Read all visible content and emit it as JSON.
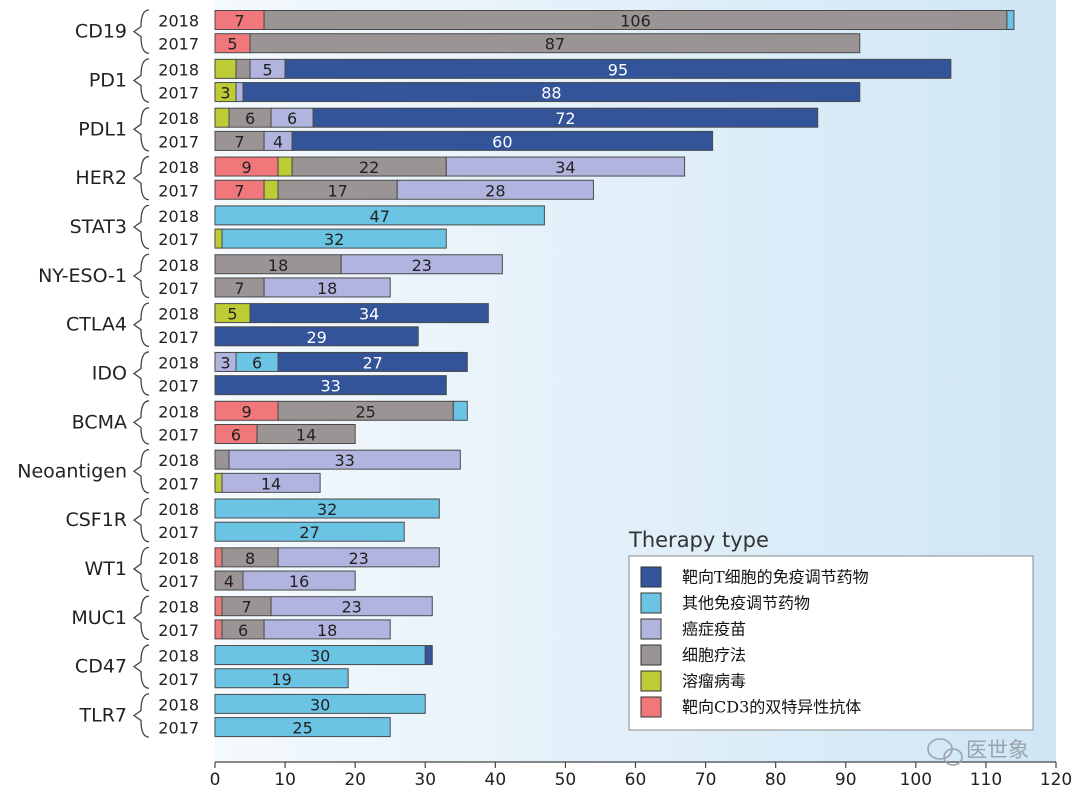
{
  "chart_data": {
    "type": "bar",
    "orientation": "horizontal",
    "stacked": true,
    "xlim": [
      0,
      120
    ],
    "xticks": [
      0,
      10,
      20,
      30,
      40,
      50,
      60,
      70,
      80,
      90,
      100,
      110,
      120
    ],
    "legend": {
      "title": "Therapy type",
      "placement": "bottom-right",
      "items": [
        {
          "key": "t_cell_immunomodulator",
          "label": "靶向T细胞的免疫调节药物",
          "color": "#34549a"
        },
        {
          "key": "other_immunomodulator",
          "label": "其他免疫调节药物",
          "color": "#6cc4e4"
        },
        {
          "key": "cancer_vaccine",
          "label": "癌症疫苗",
          "color": "#b2b4e0"
        },
        {
          "key": "cell_therapy",
          "label": "细胞疗法",
          "color": "#9a9494"
        },
        {
          "key": "oncolytic_virus",
          "label": "溶瘤病毒",
          "color": "#bdcb34"
        },
        {
          "key": "cd3_bispecific",
          "label": "靶向CD3的双特异性抗体",
          "color": "#f0787a"
        }
      ]
    },
    "series_order": [
      "cd3_bispecific",
      "oncolytic_virus",
      "cell_therapy",
      "cancer_vaccine",
      "other_immunomodulator",
      "t_cell_immunomodulator"
    ],
    "targets": [
      {
        "name": "CD19",
        "bars": [
          {
            "year": "2018",
            "segments": [
              {
                "type": "cd3_bispecific",
                "value": 7,
                "label": "7"
              },
              {
                "type": "cell_therapy",
                "value": 106,
                "label": "106"
              },
              {
                "type": "other_immunomodulator",
                "value": 1
              }
            ]
          },
          {
            "year": "2017",
            "segments": [
              {
                "type": "cd3_bispecific",
                "value": 5,
                "label": "5"
              },
              {
                "type": "cell_therapy",
                "value": 87,
                "label": "87"
              }
            ]
          }
        ]
      },
      {
        "name": "PD1",
        "bars": [
          {
            "year": "2018",
            "segments": [
              {
                "type": "oncolytic_virus",
                "value": 3
              },
              {
                "type": "cell_therapy",
                "value": 2
              },
              {
                "type": "cancer_vaccine",
                "value": 5,
                "label": "5"
              },
              {
                "type": "t_cell_immunomodulator",
                "value": 95,
                "label": "95"
              }
            ]
          },
          {
            "year": "2017",
            "segments": [
              {
                "type": "oncolytic_virus",
                "value": 3,
                "label": "3"
              },
              {
                "type": "cancer_vaccine",
                "value": 1
              },
              {
                "type": "t_cell_immunomodulator",
                "value": 88,
                "label": "88"
              }
            ]
          }
        ]
      },
      {
        "name": "PDL1",
        "bars": [
          {
            "year": "2018",
            "segments": [
              {
                "type": "oncolytic_virus",
                "value": 2
              },
              {
                "type": "cell_therapy",
                "value": 6,
                "label": "6"
              },
              {
                "type": "cancer_vaccine",
                "value": 6,
                "label": "6"
              },
              {
                "type": "t_cell_immunomodulator",
                "value": 72,
                "label": "72"
              }
            ]
          },
          {
            "year": "2017",
            "segments": [
              {
                "type": "cell_therapy",
                "value": 7,
                "label": "7"
              },
              {
                "type": "cancer_vaccine",
                "value": 4,
                "label": "4"
              },
              {
                "type": "t_cell_immunomodulator",
                "value": 60,
                "label": "60"
              }
            ]
          }
        ]
      },
      {
        "name": "HER2",
        "bars": [
          {
            "year": "2018",
            "segments": [
              {
                "type": "cd3_bispecific",
                "value": 9,
                "label": "9"
              },
              {
                "type": "oncolytic_virus",
                "value": 2
              },
              {
                "type": "cell_therapy",
                "value": 22,
                "label": "22"
              },
              {
                "type": "cancer_vaccine",
                "value": 34,
                "label": "34"
              }
            ]
          },
          {
            "year": "2017",
            "segments": [
              {
                "type": "cd3_bispecific",
                "value": 7,
                "label": "7"
              },
              {
                "type": "oncolytic_virus",
                "value": 2
              },
              {
                "type": "cell_therapy",
                "value": 17,
                "label": "17"
              },
              {
                "type": "cancer_vaccine",
                "value": 28,
                "label": "28"
              }
            ]
          }
        ]
      },
      {
        "name": "STAT3",
        "bars": [
          {
            "year": "2018",
            "segments": [
              {
                "type": "other_immunomodulator",
                "value": 47,
                "label": "47"
              }
            ]
          },
          {
            "year": "2017",
            "segments": [
              {
                "type": "oncolytic_virus",
                "value": 1
              },
              {
                "type": "other_immunomodulator",
                "value": 32,
                "label": "32"
              }
            ]
          }
        ]
      },
      {
        "name": "NY-ESO-1",
        "bars": [
          {
            "year": "2018",
            "segments": [
              {
                "type": "cell_therapy",
                "value": 18,
                "label": "18"
              },
              {
                "type": "cancer_vaccine",
                "value": 23,
                "label": "23"
              }
            ]
          },
          {
            "year": "2017",
            "segments": [
              {
                "type": "cell_therapy",
                "value": 7,
                "label": "7"
              },
              {
                "type": "cancer_vaccine",
                "value": 18,
                "label": "18"
              }
            ]
          }
        ]
      },
      {
        "name": "CTLA4",
        "bars": [
          {
            "year": "2018",
            "segments": [
              {
                "type": "oncolytic_virus",
                "value": 5,
                "label": "5"
              },
              {
                "type": "t_cell_immunomodulator",
                "value": 34,
                "label": "34"
              }
            ]
          },
          {
            "year": "2017",
            "segments": [
              {
                "type": "t_cell_immunomodulator",
                "value": 29,
                "label": "29"
              }
            ]
          }
        ]
      },
      {
        "name": "IDO",
        "bars": [
          {
            "year": "2018",
            "segments": [
              {
                "type": "cancer_vaccine",
                "value": 3,
                "label": "3"
              },
              {
                "type": "other_immunomodulator",
                "value": 6,
                "label": "6"
              },
              {
                "type": "t_cell_immunomodulator",
                "value": 27,
                "label": "27"
              }
            ]
          },
          {
            "year": "2017",
            "segments": [
              {
                "type": "t_cell_immunomodulator",
                "value": 33,
                "label": "33"
              }
            ]
          }
        ]
      },
      {
        "name": "BCMA",
        "bars": [
          {
            "year": "2018",
            "segments": [
              {
                "type": "cd3_bispecific",
                "value": 9,
                "label": "9"
              },
              {
                "type": "cell_therapy",
                "value": 25,
                "label": "25"
              },
              {
                "type": "other_immunomodulator",
                "value": 2
              }
            ]
          },
          {
            "year": "2017",
            "segments": [
              {
                "type": "cd3_bispecific",
                "value": 6,
                "label": "6"
              },
              {
                "type": "cell_therapy",
                "value": 14,
                "label": "14"
              }
            ]
          }
        ]
      },
      {
        "name": "Neoantigen",
        "bars": [
          {
            "year": "2018",
            "segments": [
              {
                "type": "cell_therapy",
                "value": 2
              },
              {
                "type": "cancer_vaccine",
                "value": 33,
                "label": "33"
              }
            ]
          },
          {
            "year": "2017",
            "segments": [
              {
                "type": "oncolytic_virus",
                "value": 1
              },
              {
                "type": "cancer_vaccine",
                "value": 14,
                "label": "14"
              }
            ]
          }
        ]
      },
      {
        "name": "CSF1R",
        "bars": [
          {
            "year": "2018",
            "segments": [
              {
                "type": "other_immunomodulator",
                "value": 32,
                "label": "32"
              }
            ]
          },
          {
            "year": "2017",
            "segments": [
              {
                "type": "other_immunomodulator",
                "value": 27,
                "label": "27"
              }
            ]
          }
        ]
      },
      {
        "name": "WT1",
        "bars": [
          {
            "year": "2018",
            "segments": [
              {
                "type": "cd3_bispecific",
                "value": 1
              },
              {
                "type": "cell_therapy",
                "value": 8,
                "label": "8"
              },
              {
                "type": "cancer_vaccine",
                "value": 23,
                "label": "23"
              }
            ]
          },
          {
            "year": "2017",
            "segments": [
              {
                "type": "cell_therapy",
                "value": 4,
                "label": "4"
              },
              {
                "type": "cancer_vaccine",
                "value": 16,
                "label": "16"
              }
            ]
          }
        ]
      },
      {
        "name": "MUC1",
        "bars": [
          {
            "year": "2018",
            "segments": [
              {
                "type": "cd3_bispecific",
                "value": 1
              },
              {
                "type": "cell_therapy",
                "value": 7,
                "label": "7"
              },
              {
                "type": "cancer_vaccine",
                "value": 23,
                "label": "23"
              }
            ]
          },
          {
            "year": "2017",
            "segments": [
              {
                "type": "cd3_bispecific",
                "value": 1
              },
              {
                "type": "cell_therapy",
                "value": 6,
                "label": "6"
              },
              {
                "type": "cancer_vaccine",
                "value": 18,
                "label": "18"
              }
            ]
          }
        ]
      },
      {
        "name": "CD47",
        "bars": [
          {
            "year": "2018",
            "segments": [
              {
                "type": "other_immunomodulator",
                "value": 30,
                "label": "30"
              },
              {
                "type": "t_cell_immunomodulator",
                "value": 1
              }
            ]
          },
          {
            "year": "2017",
            "segments": [
              {
                "type": "other_immunomodulator",
                "value": 19,
                "label": "19"
              }
            ]
          }
        ]
      },
      {
        "name": "TLR7",
        "bars": [
          {
            "year": "2018",
            "segments": [
              {
                "type": "other_immunomodulator",
                "value": 30,
                "label": "30"
              }
            ]
          },
          {
            "year": "2017",
            "segments": [
              {
                "type": "other_immunomodulator",
                "value": 25,
                "label": "25"
              }
            ]
          }
        ]
      }
    ]
  },
  "watermark": {
    "text": "医世象",
    "icon": "wechat-icon"
  }
}
